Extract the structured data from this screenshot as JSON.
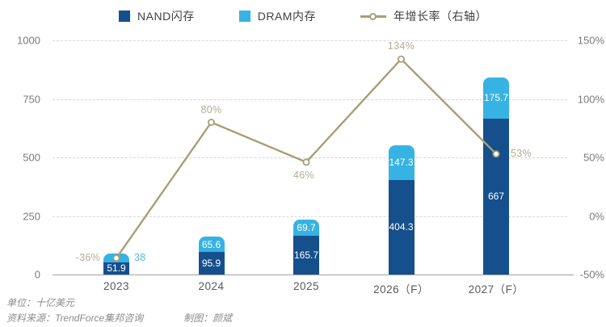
{
  "legend": {
    "items": [
      {
        "label": "NAND闪存",
        "type": "square",
        "color": "#15508C"
      },
      {
        "label": "DRAM内存",
        "type": "square",
        "color": "#36B3E3"
      },
      {
        "label": "年增长率（右轴）",
        "type": "line",
        "color": "#A89E77"
      }
    ]
  },
  "chart_data": {
    "type": "bar",
    "subtype": "stacked bars with secondary-axis line",
    "categories": [
      "2023",
      "2024",
      "2025",
      "2026（F）",
      "2027（F）"
    ],
    "series": [
      {
        "name": "NAND闪存",
        "type": "bar",
        "axis": "left",
        "color": "#15508C",
        "values": [
          51.9,
          95.9,
          165.7,
          404.3,
          667
        ],
        "labels": [
          "51.9",
          "95.9",
          "165.7",
          "404.3",
          "667"
        ],
        "label_color": "#ffffff"
      },
      {
        "name": "DRAM内存",
        "type": "bar",
        "axis": "left",
        "color": "#36B3E3",
        "values": [
          38,
          65.6,
          69.7,
          147.3,
          175.7
        ],
        "labels": [
          "38",
          "65.6",
          "69.7",
          "147.3",
          "175.7"
        ],
        "label_color": "#ffffff",
        "label_placements": [
          "right-outside",
          "inside",
          "inside",
          "inside",
          "inside"
        ],
        "outside_label_color": "#4FB9E8"
      },
      {
        "name": "年增长率（右轴）",
        "type": "line",
        "axis": "right",
        "color": "#A89E77",
        "marker": "open-circle",
        "values": [
          -36,
          80,
          46,
          134,
          53
        ],
        "labels": [
          "-36%",
          "80%",
          "46%",
          "134%",
          "53%"
        ],
        "label_placements": [
          "left",
          "above",
          "below",
          "above",
          "right"
        ],
        "label_color": "#B3AD94"
      }
    ],
    "left_axis": {
      "ticks": [
        "0",
        "250",
        "500",
        "750",
        "1000"
      ],
      "tick_values": [
        0,
        250,
        500,
        750,
        1000
      ],
      "range": [
        0,
        1000
      ]
    },
    "right_axis": {
      "ticks": [
        "-50%",
        "0%",
        "50%",
        "100%",
        "150%"
      ],
      "tick_values": [
        -50,
        0,
        50,
        100,
        150
      ],
      "range": [
        -50,
        150
      ]
    },
    "grid": "horizontal dashed",
    "legend_position": "top center",
    "title": ""
  },
  "footer": {
    "unit": "单位：十亿美元",
    "source": "资料来源：TrendForce集邦咨询",
    "credit": "制图：颜斌"
  }
}
